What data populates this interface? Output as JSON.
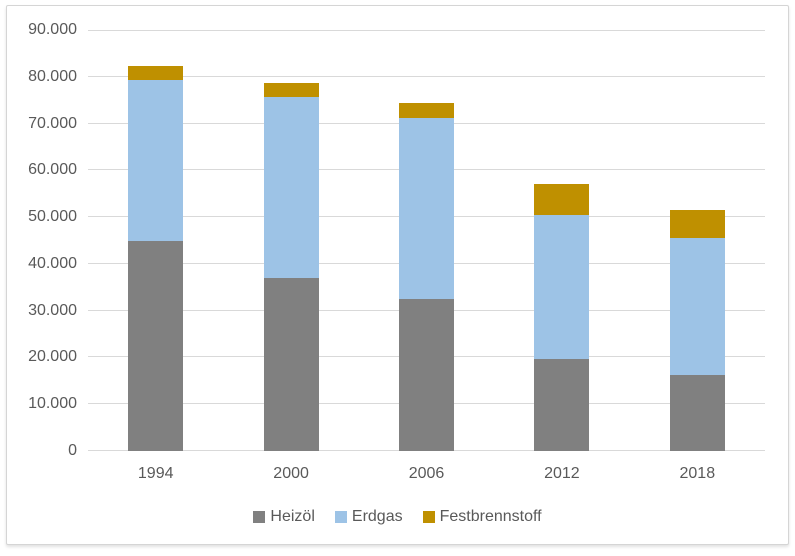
{
  "figure": {
    "background": "#ffffff",
    "border_color": "#d5d5d5"
  },
  "chart_data": {
    "type": "bar",
    "stacked": true,
    "title": "",
    "xlabel": "",
    "ylabel": "",
    "categories": [
      "1994",
      "2000",
      "2006",
      "2012",
      "2018"
    ],
    "series": [
      {
        "name": "Heizöl",
        "color": "#808080",
        "values": [
          45000,
          37000,
          32400,
          19700,
          16200
        ]
      },
      {
        "name": "Erdgas",
        "color": "#9DC3E6",
        "values": [
          34300,
          38700,
          38800,
          30700,
          29400
        ]
      },
      {
        "name": "Festbrennstoff",
        "color": "#BF9000",
        "values": [
          3000,
          3000,
          3200,
          6600,
          5900
        ]
      }
    ],
    "ylim": [
      0,
      90000
    ],
    "y_ticks": [
      {
        "value": 0,
        "label": "0"
      },
      {
        "value": 10000,
        "label": "10.000"
      },
      {
        "value": 20000,
        "label": "20.000"
      },
      {
        "value": 30000,
        "label": "30.000"
      },
      {
        "value": 40000,
        "label": "40.000"
      },
      {
        "value": 50000,
        "label": "50.000"
      },
      {
        "value": 60000,
        "label": "60.000"
      },
      {
        "value": 70000,
        "label": "70.000"
      },
      {
        "value": 80000,
        "label": "80.000"
      },
      {
        "value": 90000,
        "label": "90.000"
      }
    ],
    "grid": true,
    "gridline_color": "#d9d9d9",
    "axis_text_color": "#595959",
    "legend_position": "bottom"
  }
}
